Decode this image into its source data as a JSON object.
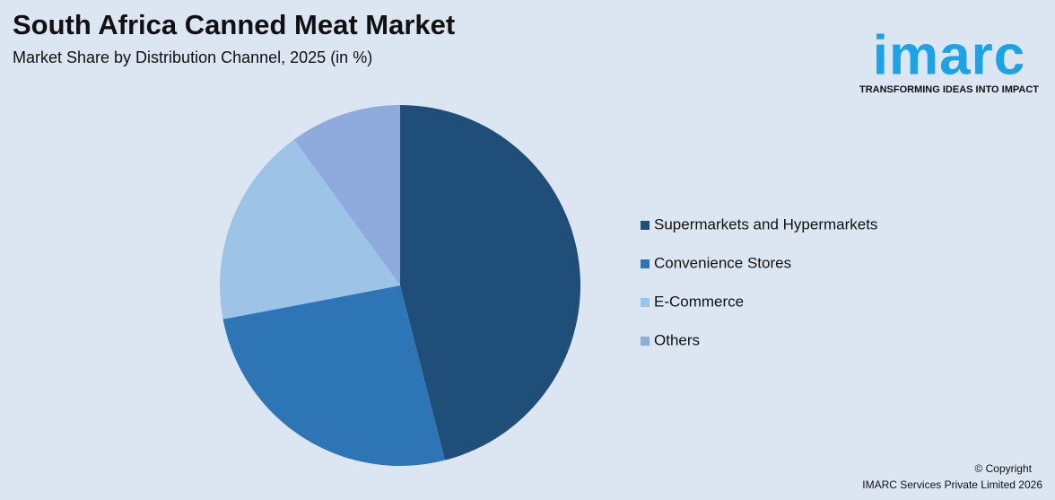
{
  "chart_data": {
    "type": "pie",
    "title": "South Africa Canned Meat Market",
    "subtitle": "Market Share by Distribution Channel, 2025 (in %)",
    "categories": [
      "Supermarkets and Hypermarkets",
      "Convenience Stores",
      "E-Commerce",
      "Others"
    ],
    "values": [
      46,
      26,
      18,
      10
    ],
    "colors": [
      "#1f4e79",
      "#2e75b6",
      "#9dc3e6",
      "#8faadc"
    ],
    "legend": "right"
  },
  "brand": {
    "logo": "imarc",
    "tagline": "TRANSFORMING IDEAS INTO IMPACT"
  },
  "footer": {
    "copyright": "© Copyright",
    "company": "IMARC Services Private Limited 2026"
  }
}
